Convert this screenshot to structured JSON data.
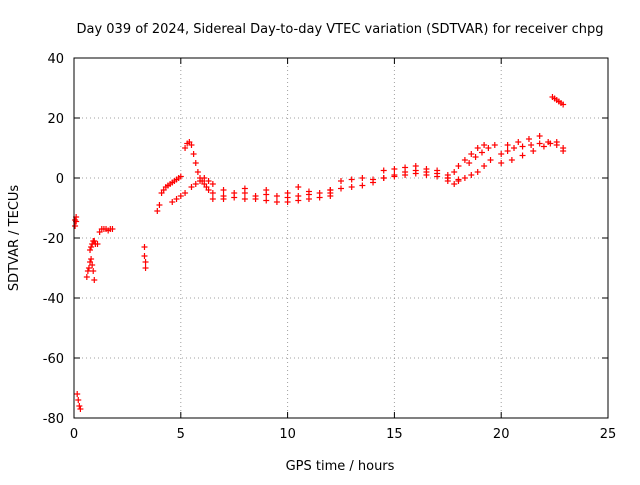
{
  "chart_data": {
    "type": "scatter",
    "title": "Day 039 of 2024, Sidereal Day-to-day VTEC variation (SDTVAR) for receiver chpg",
    "xlabel": "GPS time / hours",
    "ylabel": "SDTVAR / TECUs",
    "xlim": [
      0,
      25
    ],
    "ylim": [
      -80,
      40
    ],
    "xticks": [
      0,
      5,
      10,
      15,
      20,
      25
    ],
    "yticks": [
      -80,
      -60,
      -40,
      -20,
      0,
      20,
      40
    ],
    "xtick_labels": [
      "0",
      "5",
      "10",
      "15",
      "20",
      "25"
    ],
    "ytick_labels": [
      "-80",
      "-60",
      "-40",
      "-20",
      "0",
      "20",
      "40"
    ],
    "grid": true,
    "marker": "+",
    "color": "#ff0000",
    "series": [
      {
        "name": "SDTVAR",
        "x": [
          0.05,
          0.1,
          0.15,
          0.2,
          0.25,
          0.3,
          0.05,
          0.1,
          0.6,
          0.65,
          0.7,
          0.75,
          0.8,
          0.85,
          0.9,
          0.95,
          0.75,
          0.8,
          0.85,
          0.9,
          0.95,
          1.0,
          1.1,
          1.2,
          1.3,
          1.4,
          1.5,
          1.6,
          1.7,
          1.8,
          3.3,
          3.3,
          3.35,
          3.35,
          3.9,
          4.0,
          4.1,
          4.2,
          4.3,
          4.4,
          4.5,
          4.6,
          4.7,
          4.8,
          4.9,
          5.0,
          4.6,
          4.8,
          5.0,
          5.2,
          5.2,
          5.3,
          5.4,
          5.5,
          5.6,
          5.7,
          5.8,
          5.9,
          6.0,
          6.1,
          6.2,
          6.3,
          5.5,
          5.7,
          5.9,
          6.1,
          6.3,
          6.5,
          6.5,
          7.0,
          7.5,
          8.0,
          8.5,
          9.0,
          9.5,
          10.0,
          10.5,
          11.0,
          11.5,
          12.0,
          6.5,
          7.0,
          7.5,
          8.0,
          8.5,
          9.0,
          9.5,
          10.0,
          10.5,
          11.0,
          11.5,
          12.0,
          7.0,
          8.0,
          9.0,
          10.0,
          10.5,
          11.0,
          12.0,
          12.0,
          12.5,
          13.0,
          13.5,
          14.0,
          14.5,
          15.0,
          15.5,
          16.0,
          16.5,
          17.0,
          17.5,
          12.5,
          13.0,
          13.5,
          14.0,
          14.5,
          15.0,
          15.5,
          16.0,
          16.5,
          17.0,
          17.5,
          18.0,
          14.5,
          15.0,
          15.5,
          16.0,
          16.5,
          17.0,
          17.5,
          17.8,
          18.0,
          18.3,
          18.6,
          18.9,
          19.2,
          17.5,
          17.8,
          18.0,
          18.3,
          18.6,
          18.9,
          19.2,
          19.5,
          18.5,
          18.8,
          19.1,
          19.4,
          19.7,
          20.0,
          20.3,
          20.6,
          21.0,
          21.4,
          21.8,
          22.2,
          22.6,
          22.9,
          20.0,
          20.5,
          21.0,
          21.5,
          22.0,
          22.3,
          22.6,
          22.9,
          20.3,
          20.8,
          21.3,
          21.8,
          22.4,
          22.5,
          22.6,
          22.7,
          22.8,
          22.9
        ],
        "y": [
          -14,
          -14.5,
          -72,
          -74,
          -76,
          -77,
          -16,
          -13,
          -33,
          -31,
          -30,
          -28,
          -27,
          -29,
          -31,
          -34,
          -24,
          -23,
          -22,
          -21,
          -21,
          -22,
          -22,
          -18,
          -17,
          -17,
          -17,
          -17.5,
          -17,
          -17,
          -23,
          -26,
          -28,
          -30,
          -11,
          -9,
          -5,
          -4,
          -3,
          -2.5,
          -2,
          -1.5,
          -1,
          -0.5,
          0,
          0.5,
          -8,
          -7,
          -6,
          -5,
          10,
          11.5,
          12,
          11,
          8,
          5,
          2,
          0,
          -1,
          -2,
          -3,
          -4,
          -3,
          -2,
          -1,
          0,
          -1,
          -2,
          -5,
          -6,
          -5,
          -5,
          -6,
          -5.5,
          -6,
          -6.5,
          -6,
          -5.5,
          -5,
          -5,
          -7,
          -7,
          -6.5,
          -7,
          -7,
          -7.5,
          -8,
          -8,
          -7.5,
          -7,
          -6.5,
          -6,
          -4,
          -3.5,
          -4,
          -5,
          -3,
          -4.5,
          -4,
          -4,
          -3.5,
          -3,
          -2.5,
          -1.5,
          0,
          1,
          2,
          2.5,
          2,
          1.5,
          1,
          -1,
          -0.5,
          0,
          -0.5,
          0,
          0.5,
          1,
          1.5,
          1,
          0.5,
          0,
          -0.5,
          2.5,
          3,
          3.5,
          4,
          3,
          2.5,
          0,
          2,
          4,
          6,
          8,
          10,
          11,
          -1,
          -2,
          -1,
          0,
          1,
          2,
          4,
          6,
          5,
          7,
          8.5,
          10,
          11,
          8,
          9,
          10,
          10.5,
          11,
          11.5,
          12,
          11,
          10,
          5,
          6,
          7.5,
          9,
          10.5,
          11.5,
          12,
          9,
          11,
          12,
          13,
          14,
          27,
          26.5,
          26,
          25.5,
          25,
          24.5
        ]
      }
    ]
  }
}
